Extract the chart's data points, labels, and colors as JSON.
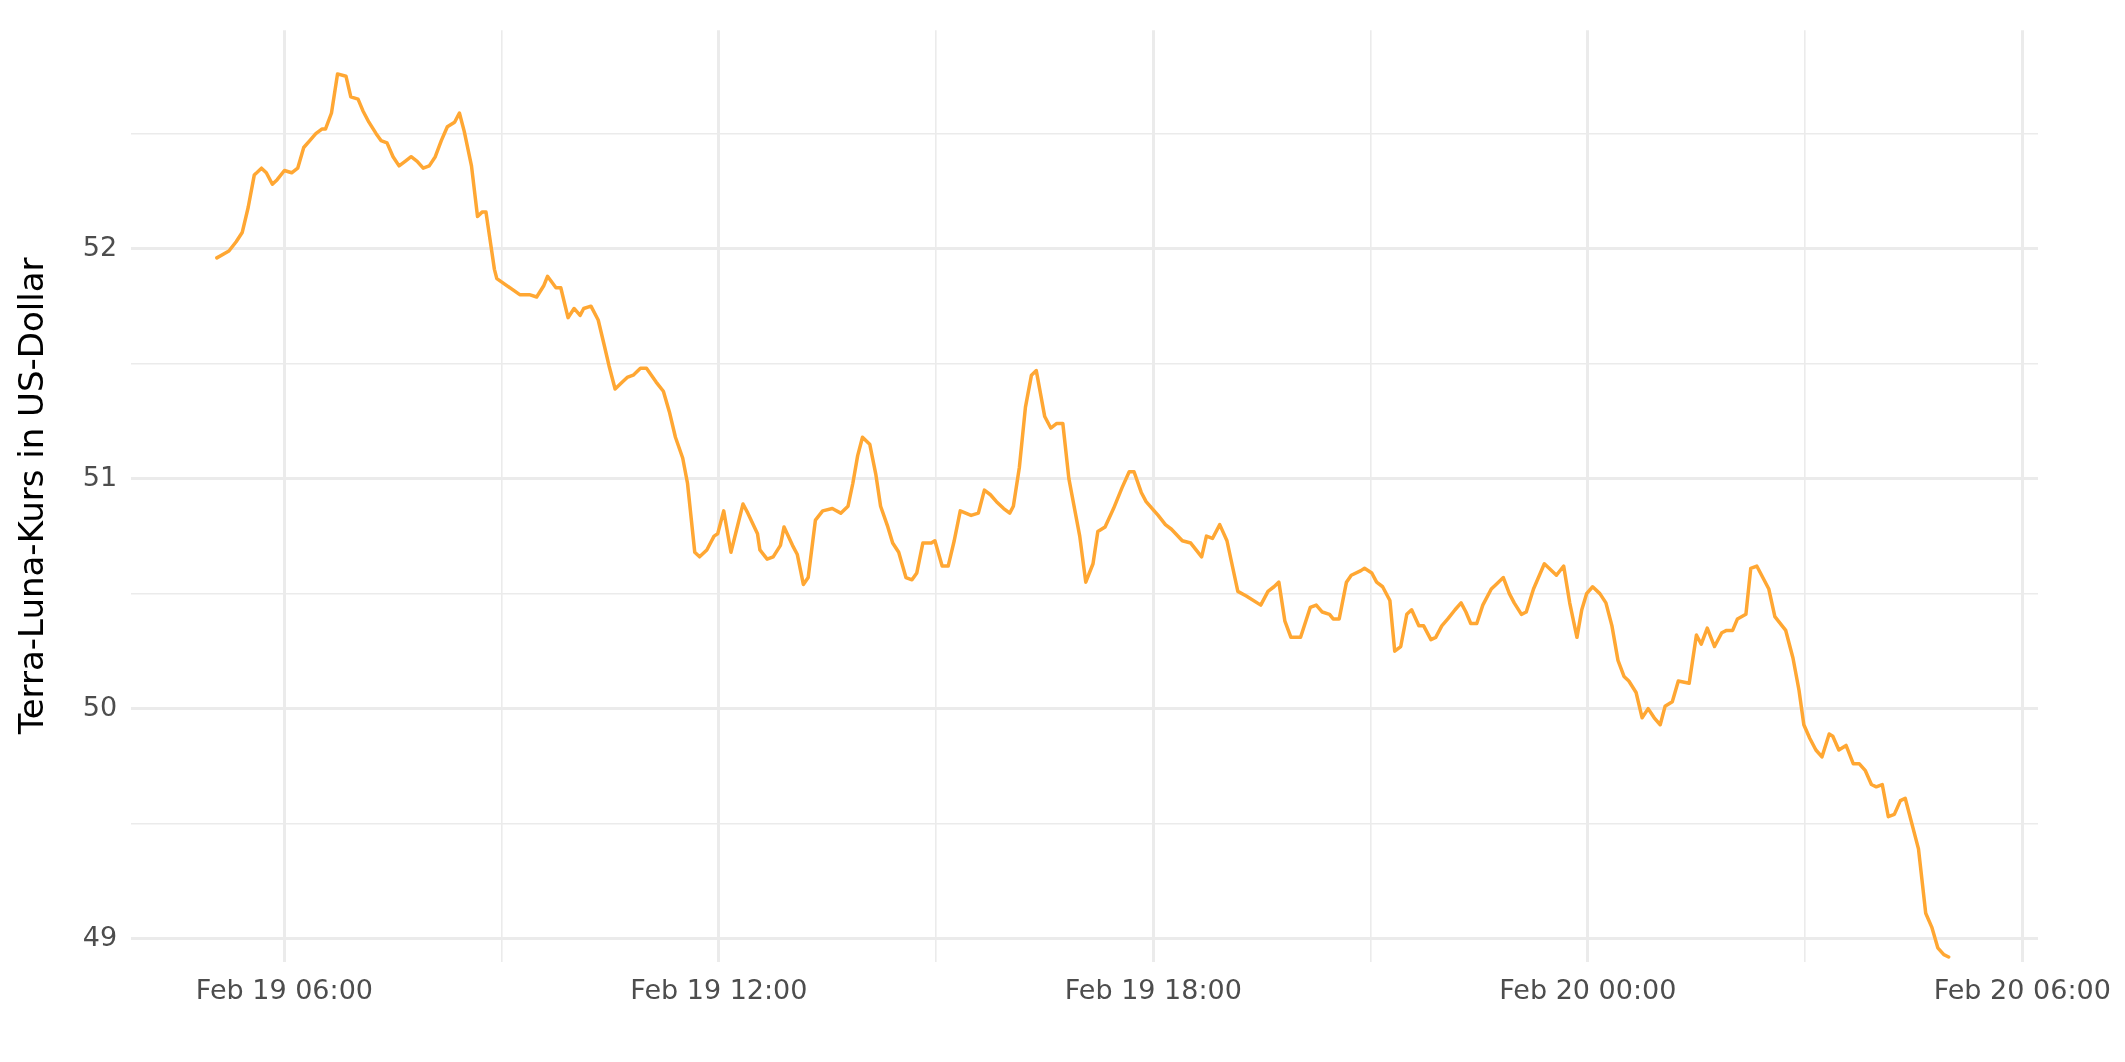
{
  "chart_data": {
    "type": "line",
    "ylabel": "Terra-Luna-Kurs in US-Dollar",
    "color": "#ffa733",
    "grid": true,
    "x": [
      "--02-19T05:04",
      "--02-19T05:14",
      "--02-19T05:20",
      "--02-19T05:25",
      "--02-19T05:30",
      "--02-19T05:35",
      "--02-19T05:41",
      "--02-19T05:45",
      "--02-19T05:50",
      "--02-19T05:54",
      "--02-19T06:00",
      "--02-19T06:06",
      "--02-19T06:11",
      "--02-19T06:16",
      "--02-19T06:21",
      "--02-19T06:26",
      "--02-19T06:31",
      "--02-19T06:34",
      "--02-19T06:39",
      "--02-19T06:44",
      "--02-19T06:51",
      "--02-19T06:55",
      "--02-19T07:01",
      "--02-19T07:05",
      "--02-19T07:10",
      "--02-19T07:16",
      "--02-19T07:20",
      "--02-19T07:25",
      "--02-19T07:30",
      "--02-19T07:35",
      "--02-19T07:40",
      "--02-19T07:45",
      "--02-19T07:50",
      "--02-19T07:55",
      "--02-19T08:00",
      "--02-19T08:05",
      "--02-19T08:10",
      "--02-19T08:15",
      "--02-19T08:21",
      "--02-19T08:25",
      "--02-19T08:29",
      "--02-19T08:35",
      "--02-19T08:40",
      "--02-19T08:44",
      "--02-19T08:47",
      "--02-19T08:54",
      "--02-19T08:56",
      "--02-19T09:15",
      "--02-19T09:23",
      "--02-19T09:29",
      "--02-19T09:35",
      "--02-19T09:38",
      "--02-19T09:45",
      "--02-19T09:49",
      "--02-19T09:55",
      "--02-19T10:00",
      "--02-19T10:05",
      "--02-19T10:08",
      "--02-19T10:14",
      "--02-19T10:20",
      "--02-19T10:25",
      "--02-19T10:29",
      "--02-19T10:34",
      "--02-19T10:40",
      "--02-19T10:44",
      "--02-19T10:49",
      "--02-19T10:55",
      "--02-19T11:00",
      "--02-19T11:08",
      "--02-19T11:14",
      "--02-19T11:19",
      "--02-19T11:24",
      "--02-19T11:30",
      "--02-19T11:34",
      "--02-19T11:40",
      "--02-19T11:44",
      "--02-19T11:50",
      "--02-19T11:56",
      "--02-19T11:59",
      "--02-19T12:04",
      "--02-19T12:10",
      "--02-19T12:20",
      "--02-19T12:24",
      "--02-19T12:32",
      "--02-19T12:34",
      "--02-19T12:40",
      "--02-19T12:45",
      "--02-19T12:51",
      "--02-19T12:54",
      "--02-19T13:01",
      "--02-19T13:05",
      "--02-19T13:10",
      "--02-19T13:14",
      "--02-19T13:20",
      "--02-19T13:26",
      "--02-19T13:34",
      "--02-19T13:41",
      "--02-19T13:47",
      "--02-19T13:51",
      "--02-19T13:55",
      "--02-19T13:59",
      "--02-19T14:05",
      "--02-19T14:10",
      "--02-19T14:14",
      "--02-19T14:20",
      "--02-19T14:24",
      "--02-19T14:29",
      "--02-19T14:35",
      "--02-19T14:40",
      "--02-19T14:44",
      "--02-19T14:49",
      "--02-19T14:56",
      "--02-19T14:59",
      "--02-19T15:05",
      "--02-19T15:10",
      "--02-19T15:15",
      "--02-19T15:20",
      "--02-19T15:29",
      "--02-19T15:35",
      "--02-19T15:40",
      "--02-19T15:45",
      "--02-19T15:50",
      "--02-19T15:56",
      "--02-19T16:01",
      "--02-19T16:04",
      "--02-19T16:09",
      "--02-19T16:14",
      "--02-19T16:19",
      "--02-19T16:23",
      "--02-19T16:30",
      "--02-19T16:35",
      "--02-19T16:40",
      "--02-19T16:45",
      "--02-19T16:50",
      "--02-19T16:59",
      "--02-19T17:04",
      "--02-19T17:10",
      "--02-19T17:14",
      "--02-19T17:20",
      "--02-19T17:27",
      "--02-19T17:34",
      "--02-19T17:40",
      "--02-19T17:44",
      "--02-19T17:50",
      "--02-19T17:54",
      "--02-19T18:04",
      "--02-19T18:10",
      "--02-19T18:15",
      "--02-19T18:24",
      "--02-19T18:31",
      "--02-19T18:40",
      "--02-19T18:44",
      "--02-19T18:49",
      "--02-19T18:55",
      "--02-19T19:01",
      "--02-19T19:10",
      "--02-19T19:17",
      "--02-19T19:29",
      "--02-19T19:35",
      "--02-19T19:40",
      "--02-19T19:44",
      "--02-19T19:49",
      "--02-19T19:54",
      "--02-19T20:02",
      "--02-19T20:10",
      "--02-19T20:15",
      "--02-19T20:20",
      "--02-19T20:26",
      "--02-19T20:29",
      "--02-19T20:34",
      "--02-19T20:40",
      "--02-19T20:44",
      "--02-19T20:52",
      "--02-19T20:55",
      "--02-19T21:01",
      "--02-19T21:05",
      "--02-19T21:10",
      "--02-19T21:16",
      "--02-19T21:20",
      "--02-19T21:25",
      "--02-19T21:30",
      "--02-19T21:34",
      "--02-19T21:40",
      "--02-19T21:44",
      "--02-19T21:50",
      "--02-19T21:54",
      "--02-19T21:59",
      "--02-19T22:04",
      "--02-19T22:10",
      "--02-19T22:15",
      "--02-19T22:19",
      "--02-19T22:23",
      "--02-19T22:28",
      "--02-19T22:33",
      "--02-19T22:40",
      "--02-19T22:44",
      "--02-19T22:50",
      "--02-19T22:55",
      "--02-19T22:59",
      "--02-19T23:05",
      "--02-19T23:09",
      "--02-19T23:15",
      "--02-19T23:24",
      "--02-19T23:34",
      "--02-19T23:40",
      "--02-19T23:45",
      "--02-19T23:51",
      "--02-19T23:55",
      "--02-19T23:59",
      "--02-20T00:04",
      "--02-20T00:10",
      "--02-20T00:15",
      "--02-20T00:20",
      "--02-20T00:25",
      "--02-20T00:30",
      "--02-20T00:34",
      "--02-20T00:40",
      "--02-20T00:45",
      "--02-20T00:50",
      "--02-20T00:55",
      "--02-20T01:00",
      "--02-20T01:04",
      "--02-20T01:10",
      "--02-20T01:15",
      "--02-20T01:24",
      "--02-20T01:30",
      "--02-20T01:34",
      "--02-20T01:39",
      "--02-20T01:45",
      "--02-20T01:51",
      "--02-20T01:55",
      "--02-20T02:00",
      "--02-20T02:04",
      "--02-20T02:11",
      "--02-20T02:15",
      "--02-20T02:20",
      "--02-20T02:25",
      "--02-20T02:30",
      "--02-20T02:35",
      "--02-20T02:44",
      "--02-20T02:50",
      "--02-20T02:55",
      "--02-20T02:59",
      "--02-20T03:04",
      "--02-20T03:09",
      "--02-20T03:14",
      "--02-20T03:20",
      "--02-20T03:23",
      "--02-20T03:28",
      "--02-20T03:34",
      "--02-20T03:40",
      "--02-20T03:45",
      "--02-20T03:50",
      "--02-20T03:55",
      "--02-20T03:59",
      "--02-20T04:04",
      "--02-20T04:09",
      "--02-20T04:14",
      "--02-20T04:19",
      "--02-20T04:23",
      "--02-20T04:34",
      "--02-20T04:40",
      "--02-20T04:45",
      "--02-20T04:50",
      "--02-20T04:55",
      "--02-20T04:59"
    ],
    "values": [
      51.96,
      51.99,
      52.03,
      52.07,
      52.18,
      52.32,
      52.35,
      52.33,
      52.28,
      52.3,
      52.34,
      52.33,
      52.35,
      52.44,
      52.47,
      52.5,
      52.52,
      52.52,
      52.59,
      52.76,
      52.75,
      52.66,
      52.65,
      52.6,
      52.55,
      52.5,
      52.47,
      52.46,
      52.4,
      52.36,
      52.38,
      52.4,
      52.38,
      52.35,
      52.36,
      52.4,
      52.47,
      52.53,
      52.55,
      52.59,
      52.51,
      52.36,
      52.14,
      52.16,
      52.16,
      51.91,
      51.87,
      51.8,
      51.8,
      51.79,
      51.84,
      51.88,
      51.83,
      51.83,
      51.7,
      51.74,
      51.71,
      51.74,
      51.75,
      51.69,
      51.58,
      51.49,
      51.39,
      51.42,
      51.44,
      51.45,
      51.48,
      51.48,
      51.42,
      51.38,
      51.29,
      51.18,
      51.09,
      50.98,
      50.68,
      50.66,
      50.69,
      50.75,
      50.76,
      50.86,
      50.68,
      50.89,
      50.85,
      50.76,
      50.69,
      50.65,
      50.66,
      50.71,
      50.79,
      50.71,
      50.67,
      50.54,
      50.57,
      50.82,
      50.86,
      50.87,
      50.85,
      50.88,
      50.98,
      51.1,
      51.18,
      51.15,
      51.02,
      50.88,
      50.79,
      50.72,
      50.68,
      50.57,
      50.56,
      50.59,
      50.72,
      50.72,
      50.73,
      50.62,
      50.62,
      50.73,
      50.86,
      50.84,
      50.85,
      50.95,
      50.93,
      50.9,
      50.87,
      50.85,
      50.88,
      51.05,
      51.31,
      51.45,
      51.47,
      51.27,
      51.22,
      51.24,
      51.24,
      51.0,
      50.75,
      50.55,
      50.63,
      50.77,
      50.79,
      50.87,
      50.96,
      51.03,
      51.03,
      50.94,
      50.9,
      50.84,
      50.8,
      50.78,
      50.73,
      50.72,
      50.66,
      50.75,
      50.74,
      50.8,
      50.73,
      50.51,
      50.49,
      50.45,
      50.51,
      50.53,
      50.55,
      50.38,
      50.31,
      50.31,
      50.44,
      50.45,
      50.42,
      50.41,
      50.39,
      50.39,
      50.55,
      50.58,
      50.6,
      50.61,
      50.59,
      50.55,
      50.53,
      50.47,
      50.25,
      50.27,
      50.41,
      50.43,
      50.36,
      50.36,
      50.3,
      50.31,
      50.36,
      50.39,
      50.43,
      50.46,
      50.42,
      50.37,
      50.37,
      50.45,
      50.52,
      50.54,
      50.57,
      50.5,
      50.46,
      50.41,
      50.42,
      50.52,
      50.63,
      50.58,
      50.62,
      50.46,
      50.31,
      50.43,
      50.5,
      50.53,
      50.5,
      50.46,
      50.36,
      50.21,
      50.14,
      50.12,
      50.07,
      49.96,
      50.0,
      49.96,
      49.93,
      50.01,
      50.03,
      50.12,
      50.11,
      50.32,
      50.28,
      50.35,
      50.27,
      50.33,
      50.34,
      50.34,
      50.39,
      50.41,
      50.61,
      50.62,
      50.57,
      50.52,
      50.4,
      50.34,
      50.22,
      50.08,
      49.93,
      49.87,
      49.82,
      49.79,
      49.89,
      49.88,
      49.82,
      49.84,
      49.76,
      49.76,
      49.73,
      49.67,
      49.66,
      49.67,
      49.53,
      49.54,
      49.6,
      49.61,
      49.39,
      49.11,
      49.05,
      48.96,
      48.93,
      48.92
    ],
    "xlim": [
      "--02-19T03:53",
      "--02-20T06:13"
    ],
    "xticks": [
      {
        "value": "--02-19T06:00",
        "label": "Feb 19 06:00"
      },
      {
        "value": "--02-19T09:00",
        "label": null
      },
      {
        "value": "--02-19T12:00",
        "label": "Feb 19 12:00"
      },
      {
        "value": "--02-19T15:00",
        "label": null
      },
      {
        "value": "--02-19T18:00",
        "label": "Feb 19 18:00"
      },
      {
        "value": "--02-19T21:00",
        "label": null
      },
      {
        "value": "--02-20T00:00",
        "label": "Feb 20 00:00"
      },
      {
        "value": "--02-20T03:00",
        "label": null
      },
      {
        "value": "--02-20T06:00",
        "label": "Feb 20 06:00"
      }
    ],
    "ylim": [
      48.9,
      52.95
    ],
    "yticks": [
      49,
      {
        "value": 49.5,
        "label": null
      },
      50,
      {
        "value": 50.5,
        "label": null
      },
      51,
      {
        "value": 51.5,
        "label": null
      },
      52,
      {
        "value": 52.5,
        "label": null
      }
    ]
  }
}
